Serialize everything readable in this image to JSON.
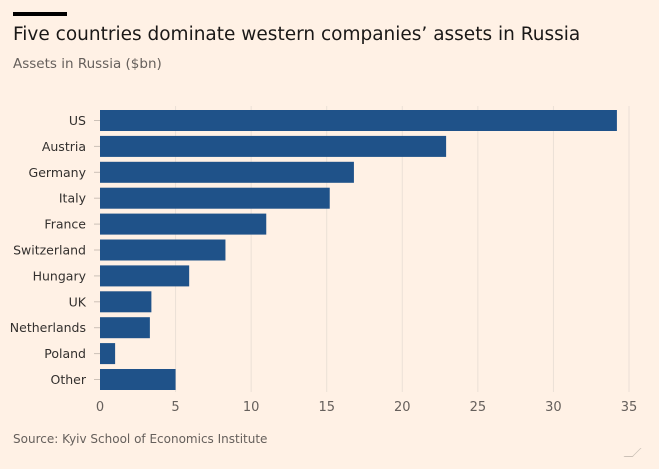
{
  "title": "Five countries dominate western companies’ assets in Russia",
  "subtitle": "Assets in Russia ($bn)",
  "source": "Source: Kyiv School of Economics Institute",
  "colors": {
    "bar": "#1f5289",
    "background": "#fff1e5",
    "grid": "#ebe0d6"
  },
  "chart_data": {
    "type": "bar",
    "orientation": "horizontal",
    "categories": [
      "US",
      "Austria",
      "Germany",
      "Italy",
      "France",
      "Switzerland",
      "Hungary",
      "UK",
      "Netherlands",
      "Poland",
      "Other"
    ],
    "values": [
      34.2,
      22.9,
      16.8,
      15.2,
      11.0,
      8.3,
      5.9,
      3.4,
      3.3,
      1.0,
      5.0
    ],
    "title": "Five countries dominate western companies’ assets in Russia",
    "ylabel": "Assets in Russia ($bn)",
    "xlim": [
      0,
      35
    ],
    "xticks": [
      0,
      5,
      10,
      15,
      20,
      25,
      30,
      35
    ],
    "grid": true
  }
}
